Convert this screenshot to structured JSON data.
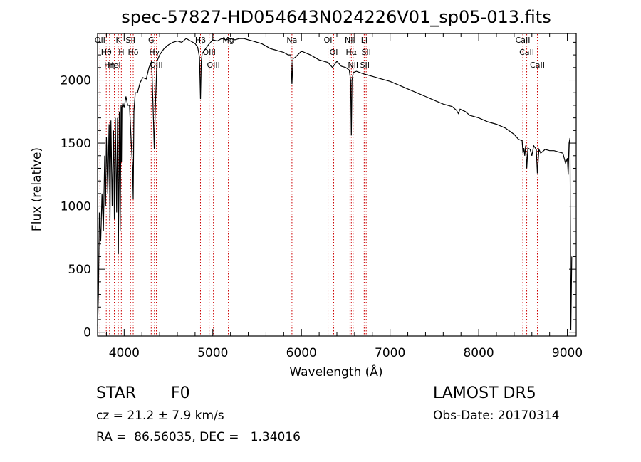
{
  "chart_data": {
    "type": "line",
    "title": "spec-57827-HD054643N024226V01_sp05-013.fits",
    "xlabel": "Wavelength (Å)",
    "ylabel": "Flux (relative)",
    "xlim": [
      3700,
      9100
    ],
    "ylim": [
      -30,
      2370
    ],
    "xticks": [
      {
        "value": 4000,
        "label": "4000"
      },
      {
        "value": 5000,
        "label": "5000"
      },
      {
        "value": 6000,
        "label": "6000"
      },
      {
        "value": 7000,
        "label": "7000"
      },
      {
        "value": 8000,
        "label": "8000"
      },
      {
        "value": 9000,
        "label": "9000"
      }
    ],
    "yticks": [
      {
        "value": 0,
        "label": "0"
      },
      {
        "value": 500,
        "label": "500"
      },
      {
        "value": 1000,
        "label": "1000"
      },
      {
        "value": 1500,
        "label": "1500"
      },
      {
        "value": 2000,
        "label": "2000"
      }
    ],
    "grid": false,
    "line_color": "#000000",
    "marker_color": "#cc0000",
    "series": [
      {
        "x": [
          3700,
          3710,
          3720,
          3735,
          3750,
          3765,
          3780,
          3790,
          3800,
          3815,
          3830,
          3840,
          3850,
          3865,
          3880,
          3890,
          3900,
          3915,
          3925,
          3935,
          3945,
          3955,
          3965,
          3970,
          3975,
          3985,
          4000,
          4020,
          4040,
          4060,
          4080,
          4095,
          4102,
          4110,
          4125,
          4150,
          4180,
          4210,
          4250,
          4280,
          4310,
          4330,
          4340,
          4350,
          4370,
          4400,
          4450,
          4500,
          4550,
          4600,
          4650,
          4700,
          4750,
          4800,
          4830,
          4850,
          4861,
          4870,
          4880,
          4900,
          4950,
          5000,
          5050,
          5100,
          5150,
          5200,
          5250,
          5300,
          5350,
          5400,
          5450,
          5500,
          5550,
          5600,
          5650,
          5700,
          5750,
          5800,
          5850,
          5880,
          5893,
          5905,
          5930,
          6000,
          6100,
          6200,
          6300,
          6350,
          6400,
          6450,
          6500,
          6540,
          6555,
          6563,
          6570,
          6585,
          6620,
          6700,
          6800,
          6900,
          7000,
          7100,
          7200,
          7300,
          7400,
          7500,
          7600,
          7700,
          7750,
          7770,
          7790,
          7850,
          7900,
          8000,
          8100,
          8200,
          8300,
          8400,
          8450,
          8490,
          8500,
          8510,
          8520,
          8530,
          8542,
          8555,
          8580,
          8600,
          8620,
          8650,
          8662,
          8680,
          8700,
          8750,
          8800,
          8850,
          8900,
          8950,
          8980,
          9000,
          9010,
          9020,
          9030,
          9040,
          9050
        ],
        "y": [
          50,
          300,
          950,
          720,
          1100,
          800,
          1400,
          1000,
          1550,
          1100,
          1650,
          880,
          1680,
          1000,
          1600,
          900,
          1700,
          950,
          1700,
          620,
          1750,
          800,
          1800,
          1350,
          1780,
          1820,
          1780,
          1870,
          1800,
          1800,
          1500,
          1300,
          1060,
          1750,
          1900,
          1900,
          1980,
          2020,
          2010,
          2100,
          2150,
          1700,
          1450,
          1750,
          2150,
          2200,
          2250,
          2280,
          2300,
          2310,
          2300,
          2330,
          2310,
          2290,
          2260,
          2180,
          1850,
          2150,
          2210,
          2230,
          2280,
          2320,
          2310,
          2330,
          2320,
          2330,
          2320,
          2330,
          2330,
          2320,
          2310,
          2300,
          2290,
          2270,
          2250,
          2240,
          2230,
          2220,
          2200,
          2200,
          1970,
          2170,
          2180,
          2230,
          2200,
          2160,
          2140,
          2100,
          2150,
          2110,
          2100,
          2080,
          2000,
          1560,
          2000,
          2060,
          2070,
          2050,
          2030,
          2010,
          1990,
          1960,
          1930,
          1900,
          1870,
          1840,
          1810,
          1790,
          1760,
          1735,
          1770,
          1750,
          1720,
          1700,
          1670,
          1650,
          1620,
          1570,
          1530,
          1520,
          1420,
          1460,
          1400,
          1480,
          1300,
          1460,
          1450,
          1400,
          1480,
          1450,
          1260,
          1450,
          1420,
          1450,
          1440,
          1440,
          1430,
          1420,
          1340,
          1380,
          1250,
          1500,
          1540,
          20,
          600
        ],
        "scale": "relative flux"
      }
    ],
    "line_markers": [
      {
        "x": 3727,
        "label": "OII"
      },
      {
        "x": 3798,
        "label": "Hθ"
      },
      {
        "x": 3835,
        "label": "Hη"
      },
      {
        "x": 3889,
        "label": "HeI"
      },
      {
        "x": 3934,
        "label": "K"
      },
      {
        "x": 3968,
        "label": "H"
      },
      {
        "x": 4072,
        "label": "SII"
      },
      {
        "x": 4102,
        "label": "Hδ"
      },
      {
        "x": 4305,
        "label": "G"
      },
      {
        "x": 4341,
        "label": "Hγ"
      },
      {
        "x": 4363,
        "label": "OIII"
      },
      {
        "x": 4861,
        "label": "Hβ"
      },
      {
        "x": 4959,
        "label": "OIII"
      },
      {
        "x": 5007,
        "label": "OIII"
      },
      {
        "x": 5175,
        "label": "Mg"
      },
      {
        "x": 5893,
        "label": "Na"
      },
      {
        "x": 6300,
        "label": "OI"
      },
      {
        "x": 6364,
        "label": "OI"
      },
      {
        "x": 6548,
        "label": "NII"
      },
      {
        "x": 6563,
        "label": "Hα"
      },
      {
        "x": 6583,
        "label": "NII"
      },
      {
        "x": 6708,
        "label": "Li"
      },
      {
        "x": 6716,
        "label": "SII"
      },
      {
        "x": 6731,
        "label": "SII"
      },
      {
        "x": 8498,
        "label": "CaII"
      },
      {
        "x": 8542,
        "label": "CaII"
      },
      {
        "x": 8662,
        "label": "CaII"
      }
    ]
  },
  "info": {
    "object_class": "STAR",
    "subclass": "F0",
    "survey": "LAMOST DR5",
    "redshift": "cz = 21.2 ± 7.9 km/s",
    "obs_date": "Obs-Date: 20170314",
    "coords": "RA =  86.56035, DEC =   1.34016"
  }
}
